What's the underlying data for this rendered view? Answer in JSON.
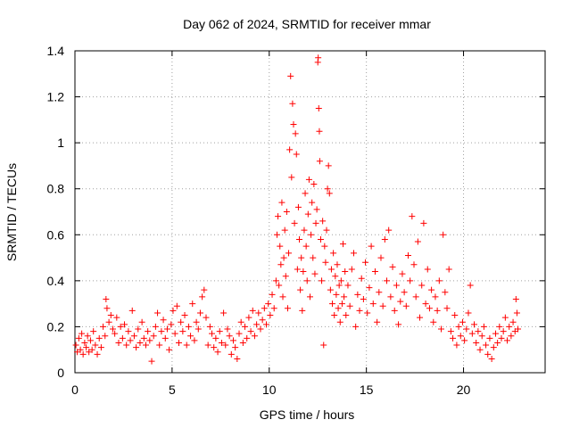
{
  "chart_data": {
    "type": "scatter",
    "title": "Day 062 of 2024, SRMTID for receiver mmar",
    "xlabel": "GPS time / hours",
    "ylabel": "SRMTID / TECUs",
    "xlim": [
      0,
      24.2
    ],
    "ylim": [
      0,
      1.4
    ],
    "xticks": [
      0,
      5,
      10,
      15,
      20
    ],
    "yticks": [
      0,
      0.2,
      0.4,
      0.6,
      0.8,
      1,
      1.2,
      1.4
    ],
    "ytick_labels": [
      "0",
      "0.2",
      "0.4",
      "0.6",
      "0.8",
      "1",
      "1.2",
      "1.4"
    ],
    "grid": true,
    "marker": "+",
    "color": "#ff0000",
    "series": [
      {
        "name": "SRMTID",
        "points": [
          [
            0.05,
            0.12
          ],
          [
            0.12,
            0.09
          ],
          [
            0.2,
            0.15
          ],
          [
            0.28,
            0.1
          ],
          [
            0.35,
            0.17
          ],
          [
            0.42,
            0.08
          ],
          [
            0.5,
            0.13
          ],
          [
            0.58,
            0.11
          ],
          [
            0.65,
            0.16
          ],
          [
            0.72,
            0.09
          ],
          [
            0.8,
            0.14
          ],
          [
            0.88,
            0.1
          ],
          [
            0.95,
            0.18
          ],
          [
            1.05,
            0.12
          ],
          [
            1.15,
            0.08
          ],
          [
            1.25,
            0.15
          ],
          [
            1.35,
            0.11
          ],
          [
            1.45,
            0.2
          ],
          [
            1.55,
            0.16
          ],
          [
            1.6,
            0.32
          ],
          [
            1.65,
            0.28
          ],
          [
            1.75,
            0.22
          ],
          [
            1.85,
            0.25
          ],
          [
            1.95,
            0.19
          ],
          [
            2.05,
            0.17
          ],
          [
            2.15,
            0.24
          ],
          [
            2.25,
            0.13
          ],
          [
            2.35,
            0.2
          ],
          [
            2.45,
            0.15
          ],
          [
            2.55,
            0.21
          ],
          [
            2.65,
            0.12
          ],
          [
            2.75,
            0.18
          ],
          [
            2.85,
            0.14
          ],
          [
            2.95,
            0.27
          ],
          [
            3.05,
            0.16
          ],
          [
            3.15,
            0.11
          ],
          [
            3.25,
            0.19
          ],
          [
            3.35,
            0.13
          ],
          [
            3.45,
            0.22
          ],
          [
            3.55,
            0.15
          ],
          [
            3.65,
            0.12
          ],
          [
            3.75,
            0.18
          ],
          [
            3.85,
            0.14
          ],
          [
            3.95,
            0.05
          ],
          [
            4.05,
            0.16
          ],
          [
            4.15,
            0.2
          ],
          [
            4.25,
            0.26
          ],
          [
            4.35,
            0.12
          ],
          [
            4.45,
            0.18
          ],
          [
            4.55,
            0.23
          ],
          [
            4.65,
            0.15
          ],
          [
            4.75,
            0.19
          ],
          [
            4.85,
            0.1
          ],
          [
            4.95,
            0.21
          ],
          [
            5.05,
            0.27
          ],
          [
            5.15,
            0.17
          ],
          [
            5.25,
            0.29
          ],
          [
            5.35,
            0.13
          ],
          [
            5.45,
            0.22
          ],
          [
            5.55,
            0.18
          ],
          [
            5.65,
            0.25
          ],
          [
            5.75,
            0.12
          ],
          [
            5.85,
            0.2
          ],
          [
            5.95,
            0.16
          ],
          [
            6.05,
            0.3
          ],
          [
            6.15,
            0.14
          ],
          [
            6.25,
            0.22
          ],
          [
            6.35,
            0.19
          ],
          [
            6.45,
            0.26
          ],
          [
            6.55,
            0.33
          ],
          [
            6.65,
            0.36
          ],
          [
            6.75,
            0.24
          ],
          [
            6.85,
            0.12
          ],
          [
            6.95,
            0.2
          ],
          [
            7.05,
            0.17
          ],
          [
            7.15,
            0.11
          ],
          [
            7.25,
            0.15
          ],
          [
            7.35,
            0.09
          ],
          [
            7.45,
            0.18
          ],
          [
            7.55,
            0.13
          ],
          [
            7.65,
            0.26
          ],
          [
            7.75,
            0.12
          ],
          [
            7.85,
            0.19
          ],
          [
            7.95,
            0.16
          ],
          [
            8.05,
            0.08
          ],
          [
            8.15,
            0.14
          ],
          [
            8.25,
            0.11
          ],
          [
            8.35,
            0.06
          ],
          [
            8.45,
            0.17
          ],
          [
            8.55,
            0.22
          ],
          [
            8.65,
            0.13
          ],
          [
            8.75,
            0.2
          ],
          [
            8.85,
            0.15
          ],
          [
            8.95,
            0.24
          ],
          [
            9.05,
            0.18
          ],
          [
            9.15,
            0.27
          ],
          [
            9.25,
            0.16
          ],
          [
            9.35,
            0.21
          ],
          [
            9.45,
            0.26
          ],
          [
            9.55,
            0.19
          ],
          [
            9.65,
            0.23
          ],
          [
            9.75,
            0.28
          ],
          [
            9.85,
            0.21
          ],
          [
            9.95,
            0.3
          ],
          [
            10.05,
            0.25
          ],
          [
            10.15,
            0.34
          ],
          [
            10.25,
            0.28
          ],
          [
            10.35,
            0.4
          ],
          [
            10.4,
            0.6
          ],
          [
            10.45,
            0.68
          ],
          [
            10.5,
            0.38
          ],
          [
            10.55,
            0.55
          ],
          [
            10.6,
            0.47
          ],
          [
            10.65,
            0.74
          ],
          [
            10.7,
            0.33
          ],
          [
            10.75,
            0.5
          ],
          [
            10.8,
            0.62
          ],
          [
            10.85,
            0.42
          ],
          [
            10.9,
            0.7
          ],
          [
            10.95,
            0.28
          ],
          [
            11.0,
            0.52
          ],
          [
            11.05,
            0.97
          ],
          [
            11.1,
            1.29
          ],
          [
            11.15,
            0.85
          ],
          [
            11.2,
            1.17
          ],
          [
            11.25,
            1.08
          ],
          [
            11.3,
            0.65
          ],
          [
            11.35,
            1.04
          ],
          [
            11.4,
            0.95
          ],
          [
            11.45,
            0.45
          ],
          [
            11.5,
            0.72
          ],
          [
            11.55,
            0.58
          ],
          [
            11.6,
            0.36
          ],
          [
            11.65,
            0.5
          ],
          [
            11.7,
            0.27
          ],
          [
            11.75,
            0.44
          ],
          [
            11.8,
            0.62
          ],
          [
            11.85,
            0.78
          ],
          [
            11.9,
            0.55
          ],
          [
            11.95,
            0.4
          ],
          [
            12.0,
            0.69
          ],
          [
            12.05,
            0.84
          ],
          [
            12.1,
            0.33
          ],
          [
            12.15,
            0.6
          ],
          [
            12.2,
            0.74
          ],
          [
            12.25,
            0.5
          ],
          [
            12.3,
            0.82
          ],
          [
            12.35,
            0.43
          ],
          [
            12.4,
            0.65
          ],
          [
            12.45,
            0.71
          ],
          [
            12.5,
            1.35
          ],
          [
            12.52,
            1.37
          ],
          [
            12.55,
            1.15
          ],
          [
            12.58,
            1.05
          ],
          [
            12.6,
            0.92
          ],
          [
            12.65,
            0.58
          ],
          [
            12.7,
            0.4
          ],
          [
            12.75,
            0.66
          ],
          [
            12.8,
            0.12
          ],
          [
            12.85,
            0.55
          ],
          [
            12.9,
            0.48
          ],
          [
            12.95,
            0.62
          ],
          [
            13.0,
            0.8
          ],
          [
            13.05,
            0.9
          ],
          [
            13.1,
            0.78
          ],
          [
            13.15,
            0.36
          ],
          [
            13.2,
            0.45
          ],
          [
            13.25,
            0.3
          ],
          [
            13.3,
            0.52
          ],
          [
            13.35,
            0.25
          ],
          [
            13.4,
            0.42
          ],
          [
            13.45,
            0.34
          ],
          [
            13.5,
            0.47
          ],
          [
            13.55,
            0.28
          ],
          [
            13.6,
            0.38
          ],
          [
            13.65,
            0.22
          ],
          [
            13.7,
            0.4
          ],
          [
            13.75,
            0.3
          ],
          [
            13.8,
            0.56
          ],
          [
            13.85,
            0.33
          ],
          [
            13.9,
            0.44
          ],
          [
            13.95,
            0.25
          ],
          [
            14.05,
            0.38
          ],
          [
            14.15,
            0.29
          ],
          [
            14.25,
            0.45
          ],
          [
            14.35,
            0.52
          ],
          [
            14.45,
            0.2
          ],
          [
            14.55,
            0.34
          ],
          [
            14.65,
            0.27
          ],
          [
            14.75,
            0.41
          ],
          [
            14.85,
            0.32
          ],
          [
            14.95,
            0.48
          ],
          [
            15.05,
            0.26
          ],
          [
            15.15,
            0.37
          ],
          [
            15.25,
            0.55
          ],
          [
            15.35,
            0.3
          ],
          [
            15.45,
            0.44
          ],
          [
            15.55,
            0.22
          ],
          [
            15.65,
            0.35
          ],
          [
            15.75,
            0.5
          ],
          [
            15.85,
            0.29
          ],
          [
            15.95,
            0.58
          ],
          [
            16.05,
            0.4
          ],
          [
            16.15,
            0.62
          ],
          [
            16.25,
            0.33
          ],
          [
            16.35,
            0.46
          ],
          [
            16.45,
            0.27
          ],
          [
            16.55,
            0.38
          ],
          [
            16.65,
            0.21
          ],
          [
            16.75,
            0.31
          ],
          [
            16.85,
            0.43
          ],
          [
            16.95,
            0.35
          ],
          [
            17.05,
            0.29
          ],
          [
            17.15,
            0.51
          ],
          [
            17.25,
            0.4
          ],
          [
            17.35,
            0.68
          ],
          [
            17.45,
            0.47
          ],
          [
            17.55,
            0.33
          ],
          [
            17.65,
            0.57
          ],
          [
            17.75,
            0.24
          ],
          [
            17.85,
            0.38
          ],
          [
            17.95,
            0.65
          ],
          [
            18.05,
            0.3
          ],
          [
            18.15,
            0.45
          ],
          [
            18.25,
            0.28
          ],
          [
            18.35,
            0.36
          ],
          [
            18.45,
            0.22
          ],
          [
            18.55,
            0.33
          ],
          [
            18.65,
            0.27
          ],
          [
            18.75,
            0.4
          ],
          [
            18.85,
            0.19
          ],
          [
            18.95,
            0.6
          ],
          [
            19.05,
            0.35
          ],
          [
            19.15,
            0.28
          ],
          [
            19.25,
            0.45
          ],
          [
            19.35,
            0.18
          ],
          [
            19.45,
            0.15
          ],
          [
            19.55,
            0.25
          ],
          [
            19.65,
            0.12
          ],
          [
            19.75,
            0.2
          ],
          [
            19.85,
            0.16
          ],
          [
            19.95,
            0.22
          ],
          [
            20.05,
            0.14
          ],
          [
            20.15,
            0.19
          ],
          [
            20.25,
            0.26
          ],
          [
            20.35,
            0.38
          ],
          [
            20.45,
            0.17
          ],
          [
            20.55,
            0.21
          ],
          [
            20.65,
            0.13
          ],
          [
            20.75,
            0.18
          ],
          [
            20.85,
            0.1
          ],
          [
            20.95,
            0.16
          ],
          [
            21.05,
            0.2
          ],
          [
            21.15,
            0.12
          ],
          [
            21.25,
            0.08
          ],
          [
            21.35,
            0.15
          ],
          [
            21.45,
            0.06
          ],
          [
            21.55,
            0.11
          ],
          [
            21.65,
            0.17
          ],
          [
            21.75,
            0.13
          ],
          [
            21.85,
            0.2
          ],
          [
            21.95,
            0.15
          ],
          [
            22.05,
            0.18
          ],
          [
            22.15,
            0.24
          ],
          [
            22.25,
            0.14
          ],
          [
            22.35,
            0.2
          ],
          [
            22.45,
            0.16
          ],
          [
            22.55,
            0.22
          ],
          [
            22.65,
            0.18
          ],
          [
            22.7,
            0.32
          ],
          [
            22.75,
            0.26
          ],
          [
            22.8,
            0.19
          ]
        ]
      }
    ]
  }
}
